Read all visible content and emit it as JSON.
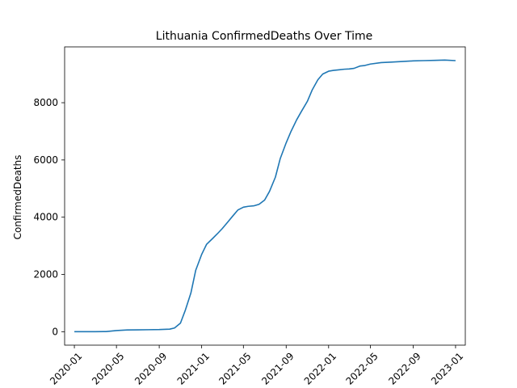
{
  "chart_data": {
    "type": "line",
    "title": "Lithuania  ConfirmedDeaths Over Time",
    "xlabel": "",
    "ylabel": "ConfirmedDeaths",
    "grid": false,
    "x_ticks": [
      "2020-01",
      "2020-05",
      "2020-09",
      "2021-01",
      "2021-05",
      "2021-09",
      "2022-01",
      "2022-05",
      "2022-09",
      "2023-01"
    ],
    "y_ticks": [
      0,
      2000,
      4000,
      6000,
      8000
    ],
    "xlim": [
      "2019-12-04",
      "2023-01-29"
    ],
    "ylim": [
      -470,
      9950
    ],
    "series": [
      {
        "name": "ConfirmedDeaths",
        "color": "#1f77b4",
        "x": [
          "2020-01-01",
          "2020-02-01",
          "2020-03-01",
          "2020-04-01",
          "2020-05-01",
          "2020-06-01",
          "2020-07-01",
          "2020-08-01",
          "2020-09-01",
          "2020-10-01",
          "2020-10-15",
          "2020-11-01",
          "2020-11-15",
          "2020-12-01",
          "2020-12-15",
          "2021-01-01",
          "2021-01-15",
          "2021-02-01",
          "2021-02-15",
          "2021-03-01",
          "2021-03-15",
          "2021-04-01",
          "2021-04-15",
          "2021-05-01",
          "2021-05-15",
          "2021-06-01",
          "2021-06-15",
          "2021-07-01",
          "2021-07-15",
          "2021-08-01",
          "2021-08-15",
          "2021-09-01",
          "2021-09-15",
          "2021-10-01",
          "2021-10-15",
          "2021-11-01",
          "2021-11-15",
          "2021-12-01",
          "2021-12-15",
          "2022-01-01",
          "2022-01-15",
          "2022-02-01",
          "2022-02-15",
          "2022-03-01",
          "2022-03-15",
          "2022-04-01",
          "2022-04-15",
          "2022-05-01",
          "2022-06-01",
          "2022-07-01",
          "2022-08-01",
          "2022-09-01",
          "2022-10-01",
          "2022-11-01",
          "2022-12-01",
          "2023-01-01"
        ],
        "y": [
          0,
          0,
          0,
          5,
          40,
          60,
          65,
          70,
          75,
          90,
          130,
          300,
          750,
          1350,
          2150,
          2700,
          3050,
          3250,
          3420,
          3600,
          3800,
          4050,
          4250,
          4350,
          4380,
          4400,
          4450,
          4600,
          4900,
          5400,
          6050,
          6600,
          7000,
          7400,
          7700,
          8050,
          8450,
          8800,
          9000,
          9100,
          9130,
          9150,
          9170,
          9180,
          9200,
          9280,
          9300,
          9350,
          9400,
          9420,
          9440,
          9460,
          9470,
          9480,
          9490,
          9470
        ]
      }
    ]
  }
}
